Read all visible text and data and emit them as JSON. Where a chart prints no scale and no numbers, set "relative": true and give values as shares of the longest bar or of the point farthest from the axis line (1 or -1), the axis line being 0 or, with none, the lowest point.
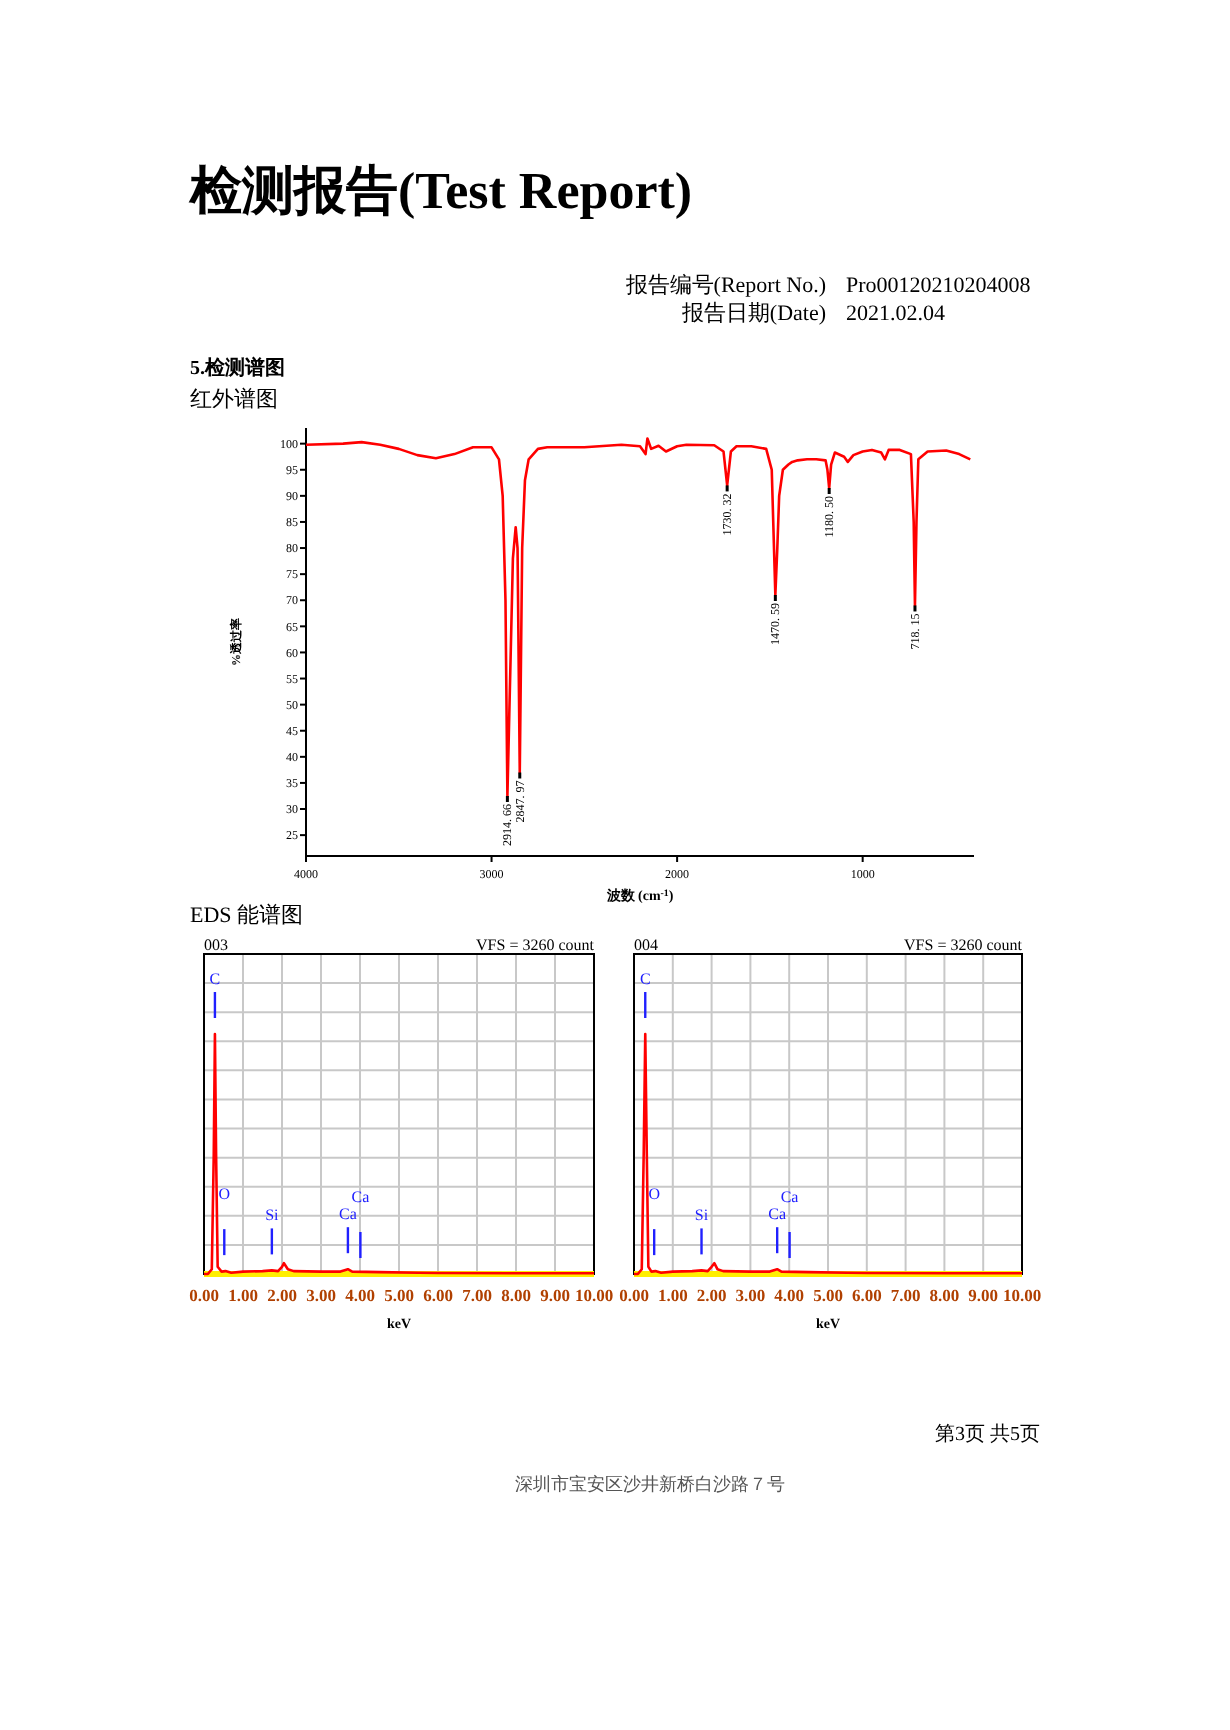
{
  "chart_data": [
    {
      "type": "line",
      "title": "检测报告(Test Report)",
      "subtitle": "红外谱图",
      "xlabel": "波数 (cm$^{-1}$)",
      "ylabel": "%透过率",
      "color": "#ff0000",
      "x": [
        4000,
        3800,
        3700,
        3600,
        3500,
        3400,
        3300,
        3200,
        3100,
        3000,
        2960,
        2940,
        2925,
        2914.66,
        2900,
        2885,
        2870,
        2860,
        2847.97,
        2835,
        2820,
        2800,
        2750,
        2700,
        2500,
        2300,
        2200,
        2170,
        2160,
        2140,
        2100,
        2060,
        2000,
        1950,
        1800,
        1750,
        1730.32,
        1710,
        1680,
        1600,
        1520,
        1490,
        1470.59,
        1460,
        1450,
        1430,
        1400,
        1380,
        1350,
        1300,
        1250,
        1200,
        1190,
        1180.5,
        1170,
        1150,
        1100,
        1080,
        1050,
        1000,
        950,
        900,
        880,
        860,
        800,
        740,
        725,
        718.15,
        710,
        700,
        650,
        550,
        480,
        420
      ],
      "values": [
        99.8,
        100,
        100.3,
        99.8,
        99,
        97.8,
        97.2,
        98,
        99.3,
        99.3,
        97,
        90,
        70,
        32.5,
        55,
        78,
        84,
        80,
        37,
        80,
        93,
        97,
        99,
        99.3,
        99.3,
        99.8,
        99.5,
        98,
        101,
        99,
        99.6,
        98.5,
        99.5,
        99.8,
        99.7,
        98.5,
        92,
        98.5,
        99.5,
        99.5,
        99,
        95,
        71,
        80,
        90,
        95,
        96,
        96.5,
        96.8,
        97,
        97,
        96.8,
        95,
        91.5,
        96,
        98.3,
        97.5,
        96.5,
        97.8,
        98.5,
        98.8,
        98.3,
        97,
        98.8,
        98.8,
        98,
        85,
        69,
        85,
        97,
        98.5,
        98.7,
        98,
        97
      ],
      "xlim": [
        4000,
        400
      ],
      "xticks": [
        4000,
        3000,
        2000,
        1000
      ],
      "ylim": [
        21,
        103
      ],
      "yticks": [
        25,
        30,
        35,
        40,
        45,
        50,
        55,
        60,
        65,
        70,
        75,
        80,
        85,
        90,
        95,
        100
      ],
      "annotations": [
        "报告编号(Report  No.)",
        "Pro00120210204008",
        "报告日期(Date)",
        "2021.02.04",
        "5.检测谱图",
        {
          "text": "2914. 66",
          "x": 2914.66,
          "y": 32.5
        },
        {
          "text": "2847. 97",
          "x": 2847.97,
          "y": 37
        },
        {
          "text": "1730. 32",
          "x": 1730.32,
          "y": 92
        },
        {
          "text": "1470. 59",
          "x": 1470.59,
          "y": 71
        },
        {
          "text": "1180. 50",
          "x": 1180.5,
          "y": 91.5
        },
        {
          "text": "718. 15",
          "x": 718.15,
          "y": 69
        }
      ]
    },
    {
      "type": "line",
      "title": "EDS 能谱图",
      "subtitle": "003",
      "xlabel": "keV",
      "color": "#ff0000",
      "relative": true,
      "grid": true,
      "tick_labels": "x",
      "x": [
        0,
        0.1,
        0.2,
        0.25,
        0.28,
        0.31,
        0.35,
        0.45,
        0.55,
        0.7,
        1.0,
        1.5,
        1.74,
        1.9,
        2.0,
        2.05,
        2.15,
        2.3,
        3.0,
        3.5,
        3.69,
        3.8,
        4.5,
        5.5,
        6,
        8,
        10
      ],
      "values": [
        0,
        0,
        0.02,
        0.5,
        1,
        0.5,
        0.03,
        0.01,
        0.012,
        0.005,
        0.01,
        0.012,
        0.015,
        0.012,
        0.03,
        0.045,
        0.02,
        0.012,
        0.01,
        0.01,
        0.02,
        0.01,
        0.008,
        0.005,
        0.004,
        0.003,
        0.003
      ],
      "xlim": [
        0,
        10
      ],
      "xticks": [
        {
          "value": 0,
          "label": "0.00"
        },
        {
          "value": 1,
          "label": "1.00"
        },
        {
          "value": 2,
          "label": "2.00"
        },
        {
          "value": 3,
          "label": "3.00"
        },
        {
          "value": 4,
          "label": "4.00"
        },
        {
          "value": 5,
          "label": "5.00"
        },
        {
          "value": 6,
          "label": "6.00"
        },
        {
          "value": 7,
          "label": "7.00"
        },
        {
          "value": 8,
          "label": "8.00"
        },
        {
          "value": 9,
          "label": "9.00"
        },
        {
          "value": 10,
          "label": "10.00"
        }
      ],
      "annotations": [
        "VFS = 3260 count"
      ],
      "ref_lines": [
        {
          "axis": "x",
          "value": 0.28,
          "label": "C",
          "color": "#2020ff"
        },
        {
          "axis": "x",
          "value": 0.52,
          "label": "O",
          "color": "#2020ff"
        },
        {
          "axis": "x",
          "value": 1.74,
          "label": "Si",
          "color": "#2020ff"
        },
        {
          "axis": "x",
          "value": 3.69,
          "label": "Ca",
          "color": "#2020ff"
        },
        {
          "axis": "x",
          "value": 4.01,
          "label": "Ca",
          "color": "#2020ff"
        }
      ]
    },
    {
      "type": "line",
      "subtitle": "004",
      "xlabel": "keV",
      "color": "#ff0000",
      "relative": true,
      "grid": true,
      "tick_labels": "x",
      "x": [
        0,
        0.1,
        0.2,
        0.25,
        0.29,
        0.33,
        0.37,
        0.45,
        0.55,
        0.7,
        1.0,
        1.5,
        1.74,
        1.9,
        2.0,
        2.07,
        2.15,
        2.3,
        3.0,
        3.5,
        3.69,
        3.8,
        4.5,
        5.5,
        6,
        8,
        10
      ],
      "values": [
        0,
        0,
        0.02,
        0.5,
        1,
        0.5,
        0.03,
        0.01,
        0.012,
        0.005,
        0.01,
        0.012,
        0.015,
        0.012,
        0.03,
        0.045,
        0.02,
        0.012,
        0.01,
        0.01,
        0.02,
        0.01,
        0.008,
        0.005,
        0.004,
        0.003,
        0.003
      ],
      "xlim": [
        0,
        10
      ],
      "xticks": [
        {
          "value": 0,
          "label": "0.00"
        },
        {
          "value": 1,
          "label": "1.00"
        },
        {
          "value": 2,
          "label": "2.00"
        },
        {
          "value": 3,
          "label": "3.00"
        },
        {
          "value": 4,
          "label": "4.00"
        },
        {
          "value": 5,
          "label": "5.00"
        },
        {
          "value": 6,
          "label": "6.00"
        },
        {
          "value": 7,
          "label": "7.00"
        },
        {
          "value": 8,
          "label": "8.00"
        },
        {
          "value": 9,
          "label": "9.00"
        },
        {
          "value": 10,
          "label": "10.00"
        }
      ],
      "annotations": [
        "VFS = 3260 count",
        "第3页  共5页",
        "深圳市宝安区沙井新桥白沙路７号"
      ],
      "ref_lines": [
        {
          "axis": "x",
          "value": 0.29,
          "label": "C",
          "color": "#2020ff"
        },
        {
          "axis": "x",
          "value": 0.52,
          "label": "O",
          "color": "#2020ff"
        },
        {
          "axis": "x",
          "value": 1.74,
          "label": "Si",
          "color": "#2020ff"
        },
        {
          "axis": "x",
          "value": 3.69,
          "label": "Ca",
          "color": "#2020ff"
        },
        {
          "axis": "x",
          "value": 4.01,
          "label": "Ca",
          "color": "#2020ff"
        }
      ]
    }
  ]
}
